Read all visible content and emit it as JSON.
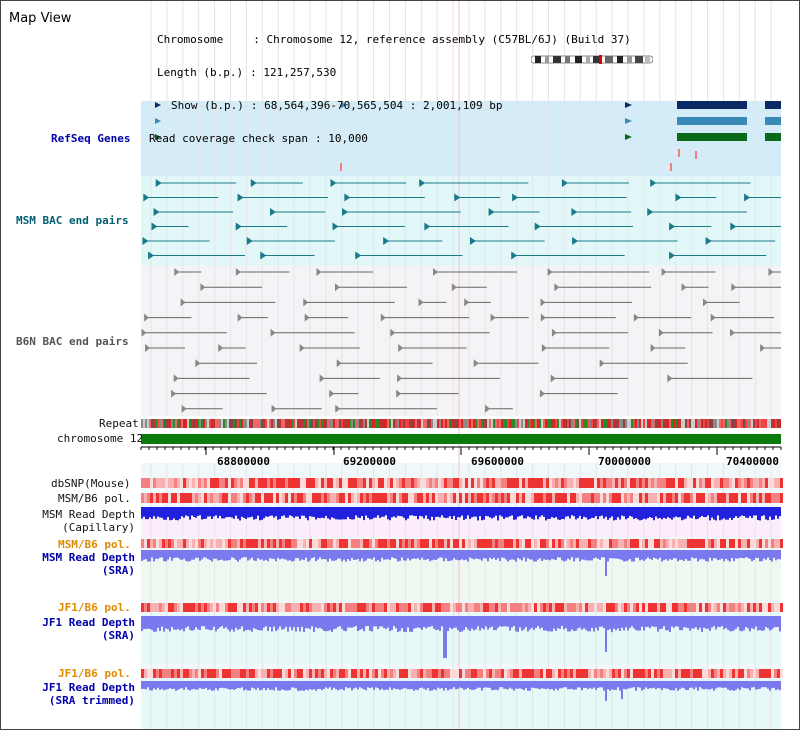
{
  "view": {
    "title": "Map View"
  },
  "info": {
    "chromosome_key": "Chromosome",
    "chromosome_val": ": Chromosome 12, reference assembly (C57BL/6J) (Build 37)",
    "length_key": "Length (b.p.)",
    "length_val": ": 121,257,530",
    "show_key": "Show (b.p.)",
    "show_val": ": 68,564,396-70,565,504 : 2,001,109 bp",
    "read_key": "Read coverage check span",
    "read_val": ": 10,000"
  },
  "tracks": {
    "refseq": "RefSeq Genes",
    "msm_bac": "MSM BAC end pairs",
    "b6n_bac": "B6N BAC end pairs",
    "repeat": "Repeat",
    "chromosome": "chromosome 12",
    "dbsnp": "dbSNP(Mouse)",
    "msm_b6_pol": "MSM/B6 pol.",
    "msm_depth_cap_1": "MSM Read Depth",
    "msm_depth_cap_2": "(Capillary)",
    "msm_b6_pol_2": "MSM/B6 pol.",
    "msm_depth_sra_1": "MSM Read Depth",
    "msm_depth_sra_2": "(SRA)",
    "jf1_b6_pol": "JF1/B6 pol.",
    "jf1_depth_sra_1": "JF1 Read Depth",
    "jf1_depth_sra_2": "(SRA)",
    "jf1_b6_pol_2": "JF1/B6 pol.",
    "jf1_depth_trim_1": "JF1 Read Depth",
    "jf1_depth_trim_2": "(SRA trimmed)"
  },
  "axis": {
    "ticks": [
      "68800000",
      "69200000",
      "69600000",
      "70000000",
      "70400000"
    ]
  },
  "colors": {
    "refseq_dark": "#0a2a66",
    "refseq_mid": "#3a8ab8",
    "refseq_green": "#0a6a1a",
    "msm_teal": "#1a7a8a",
    "b6n_gray": "#666666",
    "chromosome_green": "#0a7a0a",
    "depth_dark_blue": "#2020dd",
    "depth_light_blue": "#7a7aee",
    "pol_red": "#ee3333",
    "label_orange": "#e08a00"
  },
  "icons": {
    "ideogram": "chromosome-ideogram-icon"
  }
}
